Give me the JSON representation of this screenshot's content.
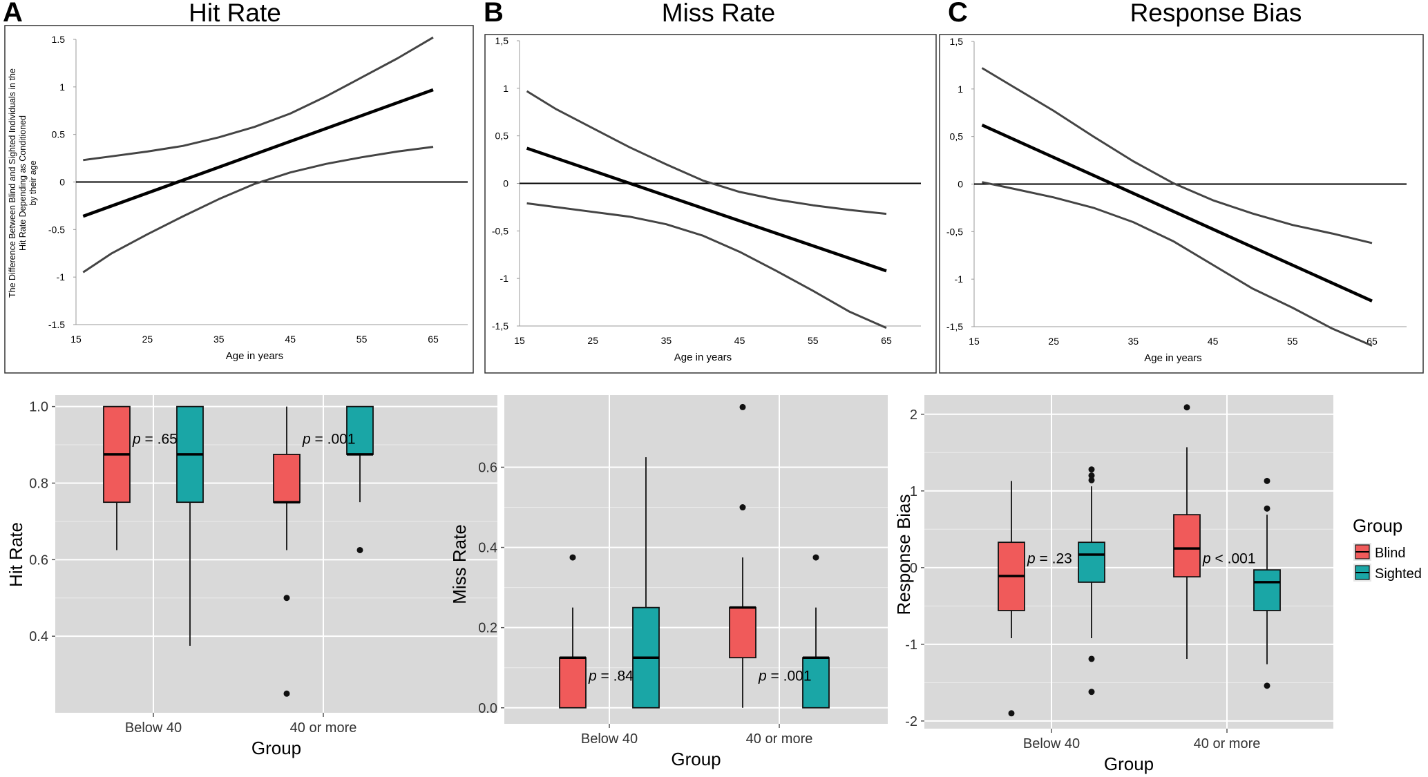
{
  "panels": [
    {
      "letter": "A",
      "title": "Hit Rate"
    },
    {
      "letter": "B",
      "title": "Miss Rate"
    },
    {
      "letter": "C",
      "title": "Response Bias"
    }
  ],
  "chart_data": [
    {
      "type": "line",
      "panel": "A",
      "xlabel": "Age in years",
      "ylabel": "The Difference Between Blind and Sighted Individuals in the Hit Rate Depending as Conditioned by their age",
      "xlim": [
        15,
        65
      ],
      "ylim": [
        -1.5,
        1.5
      ],
      "x_ticks": [
        "15",
        "25",
        "35",
        "45",
        "55",
        "65"
      ],
      "y_ticks": [
        1.5,
        1,
        0.5,
        0,
        -0.5,
        -1,
        -1.5
      ],
      "y_tick_labels": [
        "1.5",
        "1",
        "0.5",
        "0",
        "-0.5",
        "-1",
        "-1.5"
      ],
      "series": [
        {
          "name": "estimate",
          "x": [
            16,
            65
          ],
          "y": [
            -0.36,
            0.97
          ]
        },
        {
          "name": "upper bound",
          "x": [
            16,
            20,
            25,
            30,
            35,
            40,
            45,
            50,
            55,
            60,
            65
          ],
          "y": [
            0.23,
            0.27,
            0.32,
            0.38,
            0.47,
            0.58,
            0.72,
            0.9,
            1.1,
            1.3,
            1.52
          ]
        },
        {
          "name": "lower bound",
          "x": [
            16,
            20,
            25,
            30,
            35,
            40,
            45,
            50,
            55,
            60,
            65
          ],
          "y": [
            -0.95,
            -0.75,
            -0.55,
            -0.36,
            -0.18,
            -0.02,
            0.1,
            0.19,
            0.26,
            0.32,
            0.37
          ]
        }
      ]
    },
    {
      "type": "line",
      "panel": "B",
      "xlabel": "Age in years",
      "ylabel": "",
      "xlim": [
        15,
        65
      ],
      "ylim": [
        -1.5,
        1.5
      ],
      "x_ticks": [
        "15",
        "25",
        "35",
        "45",
        "55",
        "65"
      ],
      "y_ticks": [
        1.5,
        1,
        0.5,
        0,
        -0.5,
        -1,
        -1.5
      ],
      "y_tick_labels": [
        "1,5",
        "1",
        "0,5",
        "0",
        "-0,5",
        "-1",
        "-1,5"
      ],
      "series": [
        {
          "name": "estimate",
          "x": [
            16,
            65
          ],
          "y": [
            0.37,
            -0.92
          ]
        },
        {
          "name": "upper bound",
          "x": [
            16,
            20,
            25,
            30,
            35,
            40,
            45,
            50,
            55,
            60,
            65
          ],
          "y": [
            0.97,
            0.78,
            0.58,
            0.38,
            0.2,
            0.03,
            -0.09,
            -0.17,
            -0.23,
            -0.28,
            -0.32
          ]
        },
        {
          "name": "lower bound",
          "x": [
            16,
            20,
            25,
            30,
            35,
            40,
            45,
            50,
            55,
            60,
            65
          ],
          "y": [
            -0.21,
            -0.25,
            -0.3,
            -0.35,
            -0.43,
            -0.55,
            -0.72,
            -0.92,
            -1.13,
            -1.35,
            -1.52
          ]
        }
      ]
    },
    {
      "type": "line",
      "panel": "C",
      "xlabel": "Age in years",
      "ylabel": "",
      "xlim": [
        15,
        65
      ],
      "ylim": [
        -1.5,
        1.5
      ],
      "x_ticks": [
        "15",
        "25",
        "35",
        "45",
        "55",
        "65"
      ],
      "y_ticks": [
        1.5,
        1,
        0.5,
        0,
        -0.5,
        -1,
        -1.5
      ],
      "y_tick_labels": [
        "1,5",
        "1",
        "0,5",
        "0",
        "-0,5",
        "-1",
        "-1,5"
      ],
      "series": [
        {
          "name": "estimate",
          "x": [
            16,
            65
          ],
          "y": [
            0.62,
            -1.23
          ]
        },
        {
          "name": "upper bound",
          "x": [
            16,
            20,
            25,
            30,
            35,
            40,
            45,
            50,
            55,
            60,
            65
          ],
          "y": [
            1.22,
            1.02,
            0.77,
            0.5,
            0.24,
            0.01,
            -0.17,
            -0.31,
            -0.43,
            -0.52,
            -0.62
          ]
        },
        {
          "name": "lower bound",
          "x": [
            16,
            20,
            25,
            30,
            35,
            40,
            45,
            50,
            55,
            60,
            65
          ],
          "y": [
            0.02,
            -0.05,
            -0.14,
            -0.25,
            -0.4,
            -0.6,
            -0.85,
            -1.1,
            -1.3,
            -1.52,
            -1.7
          ]
        }
      ]
    },
    {
      "type": "box",
      "panel": "A",
      "xlabel": "Group",
      "ylabel": "Hit Rate",
      "categories": [
        "Below 40",
        "40 or more"
      ],
      "ylim": [
        0.2,
        1.03
      ],
      "y_ticks": [
        1.0,
        0.8,
        0.6,
        0.4
      ],
      "y_tick_labels": [
        "1.0",
        "0.8",
        "0.6",
        "0.4"
      ],
      "series": [
        {
          "name": "Blind",
          "boxes": [
            {
              "whisker_low": 0.625,
              "q1": 0.75,
              "median": 0.875,
              "q3": 1.0,
              "whisker_high": 1.0,
              "outliers": []
            },
            {
              "whisker_low": 0.625,
              "q1": 0.75,
              "median": 0.75,
              "q3": 0.875,
              "whisker_high": 1.0,
              "outliers": [
                0.5,
                0.25
              ]
            }
          ]
        },
        {
          "name": "Sighted",
          "boxes": [
            {
              "whisker_low": 0.375,
              "q1": 0.75,
              "median": 0.875,
              "q3": 1.0,
              "whisker_high": 1.0,
              "outliers": []
            },
            {
              "whisker_low": 0.75,
              "q1": 0.875,
              "median": 0.875,
              "q3": 1.0,
              "whisker_high": 1.0,
              "outliers": [
                0.625
              ]
            }
          ]
        }
      ],
      "annotations": [
        {
          "p_label": "p",
          "p_value": " = .65",
          "y": 0.915
        },
        {
          "p_label": "p",
          "p_value": " = .001",
          "y": 0.915
        }
      ]
    },
    {
      "type": "box",
      "panel": "B",
      "xlabel": "Group",
      "ylabel": "Miss Rate",
      "categories": [
        "Below 40",
        "40 or more"
      ],
      "ylim": [
        -0.04,
        0.78
      ],
      "y_ticks": [
        0.6,
        0.4,
        0.2,
        0.0
      ],
      "y_tick_labels": [
        "0.6",
        "0.4",
        "0.2",
        "0.0"
      ],
      "series": [
        {
          "name": "Blind",
          "boxes": [
            {
              "whisker_low": 0.0,
              "q1": 0.0,
              "median": 0.125,
              "q3": 0.125,
              "whisker_high": 0.25,
              "outliers": [
                0.375
              ]
            },
            {
              "whisker_low": 0.0,
              "q1": 0.125,
              "median": 0.25,
              "q3": 0.25,
              "whisker_high": 0.375,
              "outliers": [
                0.5,
                0.75
              ]
            }
          ]
        },
        {
          "name": "Sighted",
          "boxes": [
            {
              "whisker_low": 0.0,
              "q1": 0.0,
              "median": 0.125,
              "q3": 0.25,
              "whisker_high": 0.625,
              "outliers": []
            },
            {
              "whisker_low": 0.0,
              "q1": 0.0,
              "median": 0.125,
              "q3": 0.125,
              "whisker_high": 0.25,
              "outliers": [
                0.375
              ]
            }
          ]
        }
      ],
      "annotations": [
        {
          "p_label": "p",
          "p_value": " = .84",
          "y": 0.08
        },
        {
          "p_label": "p",
          "p_value": " = .001",
          "y": 0.08
        }
      ]
    },
    {
      "type": "box",
      "panel": "C",
      "xlabel": "Group",
      "ylabel": "Response Bias",
      "categories": [
        "Below 40",
        "40 or more"
      ],
      "ylim": [
        -2.1,
        2.25
      ],
      "y_ticks": [
        2,
        1,
        0,
        -1,
        -2
      ],
      "y_tick_labels": [
        "2",
        "1",
        "0",
        "-1",
        "-2"
      ],
      "series": [
        {
          "name": "Blind",
          "boxes": [
            {
              "whisker_low": -0.92,
              "q1": -0.56,
              "median": -0.11,
              "q3": 0.33,
              "whisker_high": 1.13,
              "outliers": [
                -1.9
              ]
            },
            {
              "whisker_low": -1.19,
              "q1": -0.12,
              "median": 0.25,
              "q3": 0.69,
              "whisker_high": 1.57,
              "outliers": [
                2.09
              ]
            }
          ]
        },
        {
          "name": "Sighted",
          "boxes": [
            {
              "whisker_low": -0.92,
              "q1": -0.19,
              "median": 0.17,
              "q3": 0.33,
              "whisker_high": 1.06,
              "outliers": [
                1.14,
                1.2,
                1.28,
                -1.19,
                -1.62
              ]
            },
            {
              "whisker_low": -1.26,
              "q1": -0.56,
              "median": -0.19,
              "q3": -0.03,
              "whisker_high": 0.69,
              "outliers": [
                0.77,
                1.13,
                -1.54
              ]
            }
          ]
        }
      ],
      "annotations": [
        {
          "p_label": "p",
          "p_value": " = .23",
          "y": 0.12
        },
        {
          "p_label": "p",
          "p_value": " < .001",
          "y": 0.12
        }
      ],
      "legend": {
        "title": "Group",
        "position": "right",
        "entries": [
          "Blind",
          "Sighted"
        ]
      }
    }
  ],
  "colors": {
    "blind": "#f05a5a",
    "sighted": "#1aa6a6",
    "panel_bg": "#d9d9d9",
    "grid": "#ffffff",
    "band_line": "#444444",
    "estimate_line": "#000000"
  }
}
